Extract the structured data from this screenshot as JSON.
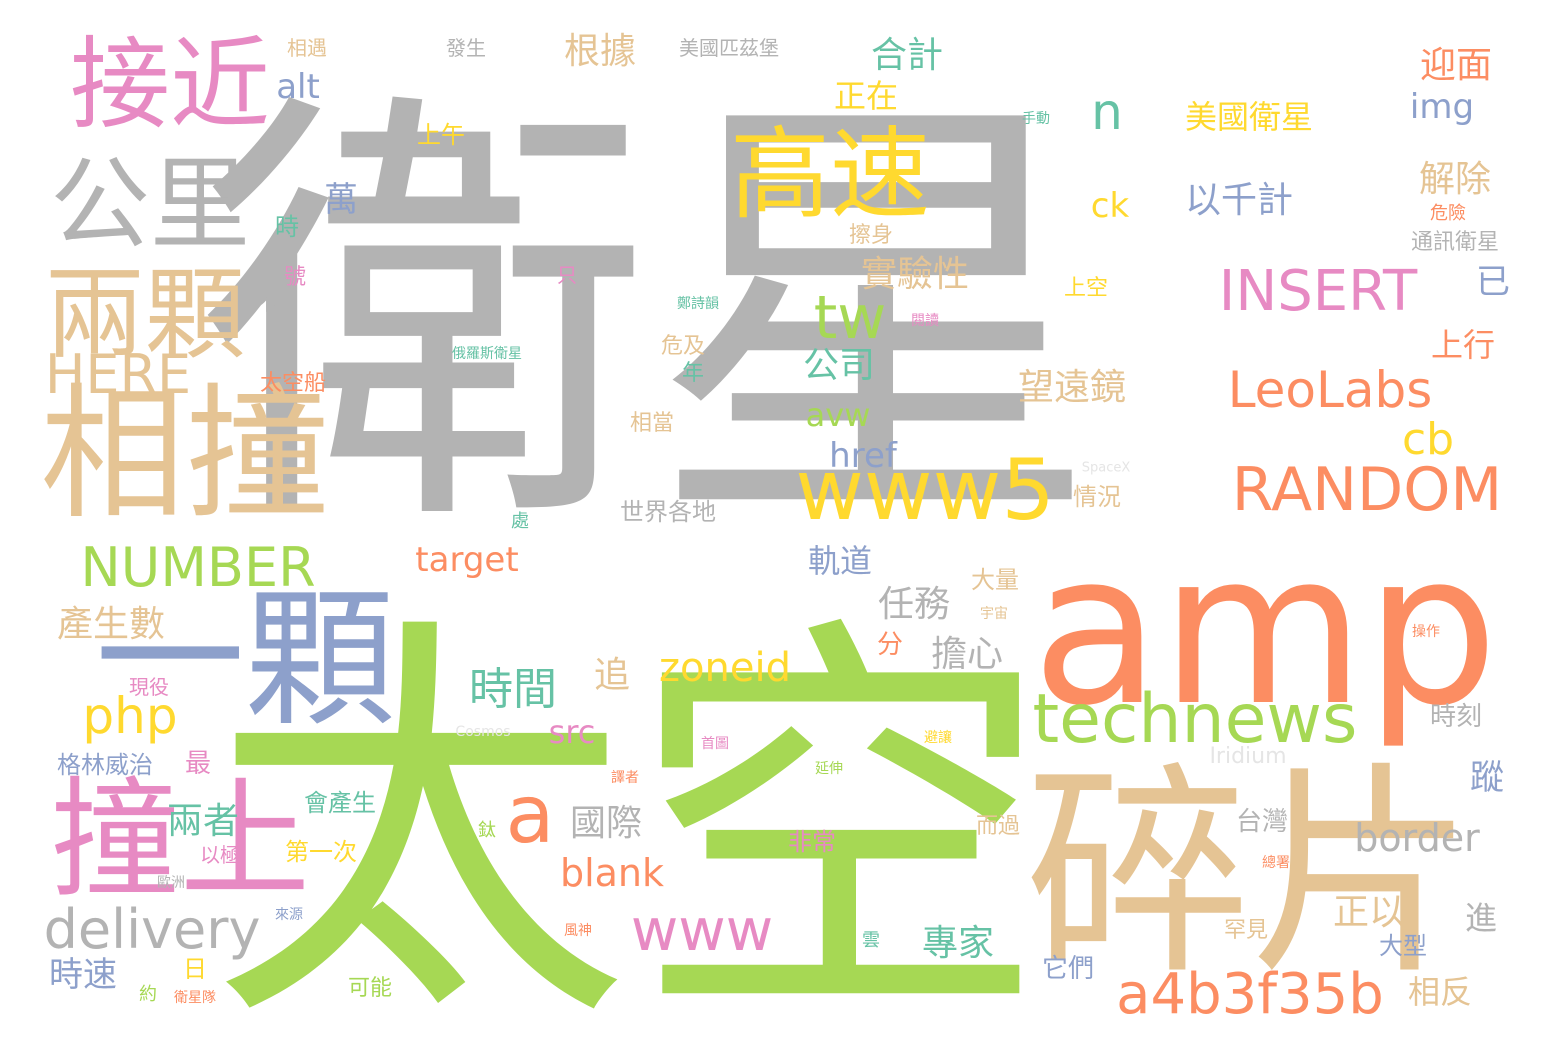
{
  "words": [
    {
      "text": "衛星",
      "color": "#b3b3b3"
    },
    {
      "text": "太空",
      "color": "#a6d854"
    },
    {
      "text": "amp",
      "color": "#fc8d62"
    },
    {
      "text": "碎片",
      "color": "#e5c494"
    },
    {
      "text": "一顆",
      "color": "#8da0cb"
    },
    {
      "text": "相撞",
      "color": "#e5c494"
    },
    {
      "text": "撞上",
      "color": "#e78ac3"
    },
    {
      "text": "接近",
      "color": "#e78ac3"
    },
    {
      "text": "公里",
      "color": "#b3b3b3"
    },
    {
      "text": "兩顆",
      "color": "#e5c494"
    },
    {
      "text": "高速",
      "color": "#ffd92f"
    },
    {
      "text": "www5",
      "color": "#ffd92f"
    },
    {
      "text": "technews",
      "color": "#a6d854"
    },
    {
      "text": "a4b3f35b",
      "color": "#fc8d62"
    },
    {
      "text": "RANDOM",
      "color": "#fc8d62"
    },
    {
      "text": "LeoLabs",
      "color": "#fc8d62"
    },
    {
      "text": "INSERT",
      "color": "#e78ac3"
    },
    {
      "text": "NUMBER",
      "color": "#a6d854"
    },
    {
      "text": "HERE",
      "color": "#e5c494"
    },
    {
      "text": "delivery",
      "color": "#b3b3b3"
    },
    {
      "text": "www",
      "color": "#e78ac3"
    },
    {
      "text": "zoneid",
      "color": "#ffd92f"
    },
    {
      "text": "php",
      "color": "#ffd92f"
    },
    {
      "text": "a",
      "color": "#fc8d62"
    },
    {
      "text": "tw",
      "color": "#a6d854"
    },
    {
      "text": "n",
      "color": "#66c2a5"
    },
    {
      "text": "cb",
      "color": "#ffd92f"
    },
    {
      "text": "border",
      "color": "#b3b3b3"
    },
    {
      "text": "blank",
      "color": "#fc8d62"
    },
    {
      "text": "target",
      "color": "#fc8d62"
    },
    {
      "text": "src",
      "color": "#e78ac3"
    },
    {
      "text": "href",
      "color": "#8da0cb"
    },
    {
      "text": "avw",
      "color": "#a6d854"
    },
    {
      "text": "alt",
      "color": "#8da0cb"
    },
    {
      "text": "img",
      "color": "#8da0cb"
    },
    {
      "text": "ck",
      "color": "#ffd92f"
    },
    {
      "text": "Iridium",
      "color": "#e5e5e5"
    },
    {
      "text": "Cosmos",
      "color": "#e5e5e5"
    },
    {
      "text": "SpaceX",
      "color": "#e5e5e5"
    },
    {
      "text": "時間",
      "color": "#66c2a5"
    },
    {
      "text": "兩者",
      "color": "#66c2a5"
    },
    {
      "text": "國際",
      "color": "#b3b3b3"
    },
    {
      "text": "專家",
      "color": "#66c2a5"
    },
    {
      "text": "任務",
      "color": "#b3b3b3"
    },
    {
      "text": "擔心",
      "color": "#b3b3b3"
    },
    {
      "text": "追",
      "color": "#e5c494"
    },
    {
      "text": "軌道",
      "color": "#8da0cb"
    },
    {
      "text": "望遠鏡",
      "color": "#e5c494"
    },
    {
      "text": "實驗性",
      "color": "#e5c494"
    },
    {
      "text": "公司",
      "color": "#66c2a5"
    },
    {
      "text": "萬",
      "color": "#8da0cb"
    },
    {
      "text": "合計",
      "color": "#66c2a5"
    },
    {
      "text": "正在",
      "color": "#ffd92f"
    },
    {
      "text": "根據",
      "color": "#e5c494"
    },
    {
      "text": "美國衛星",
      "color": "#ffd92f"
    },
    {
      "text": "以千計",
      "color": "#8da0cb"
    },
    {
      "text": "迎面",
      "color": "#fc8d62"
    },
    {
      "text": "解除",
      "color": "#e5c494"
    },
    {
      "text": "已",
      "color": "#8da0cb"
    },
    {
      "text": "上行",
      "color": "#fc8d62"
    },
    {
      "text": "產生數",
      "color": "#e5c494"
    },
    {
      "text": "時速",
      "color": "#8da0cb"
    },
    {
      "text": "格林威治",
      "color": "#8da0cb"
    },
    {
      "text": "現役",
      "color": "#e78ac3"
    },
    {
      "text": "最",
      "color": "#e78ac3"
    },
    {
      "text": "正以",
      "color": "#e5c494"
    },
    {
      "text": "進",
      "color": "#b3b3b3"
    },
    {
      "text": "相反",
      "color": "#e5c494"
    },
    {
      "text": "台灣",
      "color": "#b3b3b3"
    },
    {
      "text": "蹤",
      "color": "#8da0cb"
    },
    {
      "text": "時刻",
      "color": "#b3b3b3"
    },
    {
      "text": "大型",
      "color": "#8da0cb"
    },
    {
      "text": "罕見",
      "color": "#e5c494"
    },
    {
      "text": "它們",
      "color": "#8da0cb"
    },
    {
      "text": "會產生",
      "color": "#66c2a5"
    },
    {
      "text": "第一次",
      "color": "#ffd92f"
    },
    {
      "text": "以極",
      "color": "#e78ac3"
    },
    {
      "text": "非常",
      "color": "#e78ac3"
    },
    {
      "text": "而過",
      "color": "#e5c494"
    },
    {
      "text": "可能",
      "color": "#a6d854"
    },
    {
      "text": "大量",
      "color": "#e5c494"
    },
    {
      "text": "分",
      "color": "#fc8d62"
    },
    {
      "text": "世界各地",
      "color": "#b3b3b3"
    },
    {
      "text": "情況",
      "color": "#e5c494"
    },
    {
      "text": "相當",
      "color": "#e5c494"
    },
    {
      "text": "危及",
      "color": "#e5c494"
    },
    {
      "text": "年",
      "color": "#66c2a5"
    },
    {
      "text": "太空船",
      "color": "#fc8d62"
    },
    {
      "text": "上空",
      "color": "#ffd92f"
    },
    {
      "text": "擦身",
      "color": "#e5c494"
    },
    {
      "text": "危險",
      "color": "#fc8d62"
    },
    {
      "text": "通訊衛星",
      "color": "#b3b3b3"
    },
    {
      "text": "上午",
      "color": "#ffd92f"
    },
    {
      "text": "時",
      "color": "#66c2a5"
    },
    {
      "text": "號",
      "color": "#e78ac3"
    },
    {
      "text": "不",
      "color": "#b3b3b3"
    },
    {
      "text": "相遇",
      "color": "#e5c494"
    },
    {
      "text": "發生",
      "color": "#b3b3b3"
    },
    {
      "text": "美國匹茲堡",
      "color": "#b3b3b3"
    },
    {
      "text": "手動",
      "color": "#66c2a5"
    },
    {
      "text": "只",
      "color": "#e78ac3"
    },
    {
      "text": "俄羅斯衛星",
      "color": "#66c2a5"
    },
    {
      "text": "鄭詩韻",
      "color": "#66c2a5"
    },
    {
      "text": "閱讀",
      "color": "#e78ac3"
    },
    {
      "text": "處",
      "color": "#66c2a5"
    },
    {
      "text": "宇宙",
      "color": "#e5c494"
    },
    {
      "text": "操作",
      "color": "#fc8d62"
    },
    {
      "text": "避讓",
      "color": "#ffd92f"
    },
    {
      "text": "首圖",
      "color": "#e78ac3"
    },
    {
      "text": "延伸",
      "color": "#a6d854"
    },
    {
      "text": "譯者",
      "color": "#fc8d62"
    },
    {
      "text": "鈦",
      "color": "#a6d854"
    },
    {
      "text": "歐洲",
      "color": "#b3b3b3"
    },
    {
      "text": "來源",
      "color": "#8da0cb"
    },
    {
      "text": "風神",
      "color": "#fc8d62"
    },
    {
      "text": "雲",
      "color": "#66c2a5"
    },
    {
      "text": "日",
      "color": "#ffd92f"
    },
    {
      "text": "約",
      "color": "#a6d854"
    },
    {
      "text": "衛星隊",
      "color": "#fc8d62"
    },
    {
      "text": "總署",
      "color": "#fc8d62"
    }
  ]
}
